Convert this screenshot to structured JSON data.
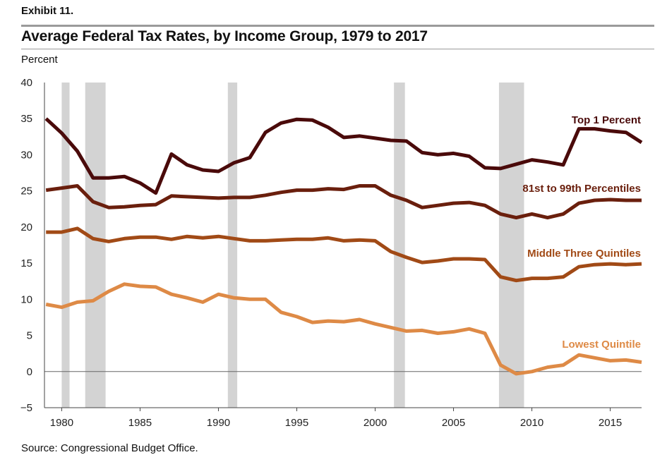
{
  "header": {
    "exhibit": "Exhibit 11.",
    "title": "Average Federal Tax Rates, by Income Group, 1979 to 2017",
    "ylabel": "Percent"
  },
  "footer": {
    "source": "Source: Congressional Budget Office."
  },
  "chart_data": {
    "type": "line",
    "title": "Average Federal Tax Rates, by Income Group, 1979 to 2017",
    "ylabel": "Percent",
    "xlabel": "",
    "xlim": [
      1978.9,
      2017
    ],
    "ylim": [
      -5,
      40
    ],
    "yticks": [
      40,
      35,
      30,
      25,
      20,
      15,
      10,
      5,
      0,
      -5
    ],
    "yticklabels": [
      "40",
      "35",
      "30",
      "25",
      "20",
      "15",
      "10",
      "5",
      "0",
      "−5"
    ],
    "xticks": [
      1980,
      1985,
      1990,
      1995,
      2000,
      2005,
      2010,
      2015
    ],
    "xticklabels": [
      "1980",
      "1985",
      "1990",
      "1995",
      "2000",
      "2005",
      "2010",
      "2015"
    ],
    "zero_line": true,
    "recessions": [
      [
        1980.0,
        1980.5
      ],
      [
        1981.5,
        1982.8
      ],
      [
        1990.6,
        1991.2
      ],
      [
        2001.2,
        2001.9
      ],
      [
        2007.9,
        2009.5
      ]
    ],
    "recession_color": "#d3d3d3",
    "x": [
      1979,
      1980,
      1981,
      1982,
      1983,
      1984,
      1985,
      1986,
      1987,
      1988,
      1989,
      1990,
      1991,
      1992,
      1993,
      1994,
      1995,
      1996,
      1997,
      1998,
      1999,
      2000,
      2001,
      2002,
      2003,
      2004,
      2005,
      2006,
      2007,
      2008,
      2009,
      2010,
      2011,
      2012,
      2013,
      2014,
      2015,
      2016,
      2017
    ],
    "series": [
      {
        "name": "Top 1 Percent",
        "color": "#4a0a0a",
        "values": [
          35.0,
          33.0,
          30.5,
          26.8,
          26.8,
          27.0,
          26.1,
          24.7,
          30.1,
          28.6,
          27.9,
          27.7,
          28.9,
          29.6,
          33.1,
          34.4,
          34.9,
          34.8,
          33.8,
          32.4,
          32.6,
          32.3,
          32.0,
          31.9,
          30.3,
          30.0,
          30.2,
          29.8,
          28.2,
          28.1,
          28.7,
          29.3,
          29.0,
          28.6,
          33.6,
          33.6,
          33.3,
          33.1,
          31.7
        ]
      },
      {
        "name": "81st to 99th Percentiles",
        "color": "#6a1f0d",
        "values": [
          25.1,
          25.4,
          25.7,
          23.5,
          22.7,
          22.8,
          23.0,
          23.1,
          24.3,
          24.2,
          24.1,
          24.0,
          24.1,
          24.1,
          24.4,
          24.8,
          25.1,
          25.1,
          25.3,
          25.2,
          25.7,
          25.7,
          24.4,
          23.7,
          22.7,
          23.0,
          23.3,
          23.4,
          23.0,
          21.8,
          21.3,
          21.8,
          21.3,
          21.8,
          23.3,
          23.7,
          23.8,
          23.7,
          23.7
        ]
      },
      {
        "name": "Middle Three Quintiles",
        "color": "#a14a16",
        "values": [
          19.3,
          19.3,
          19.8,
          18.4,
          18.0,
          18.4,
          18.6,
          18.6,
          18.3,
          18.7,
          18.5,
          18.7,
          18.4,
          18.1,
          18.1,
          18.2,
          18.3,
          18.3,
          18.5,
          18.1,
          18.2,
          18.1,
          16.6,
          15.8,
          15.1,
          15.3,
          15.6,
          15.6,
          15.5,
          13.1,
          12.6,
          12.9,
          12.9,
          13.1,
          14.5,
          14.8,
          14.9,
          14.8,
          14.9
        ]
      },
      {
        "name": "Lowest Quintile",
        "color": "#de8a46",
        "values": [
          9.3,
          8.9,
          9.6,
          9.8,
          11.1,
          12.1,
          11.8,
          11.7,
          10.7,
          10.2,
          9.6,
          10.7,
          10.2,
          10.0,
          10.0,
          8.2,
          7.6,
          6.8,
          7.0,
          6.9,
          7.2,
          6.6,
          6.1,
          5.6,
          5.7,
          5.3,
          5.5,
          5.9,
          5.3,
          0.9,
          -0.3,
          0.0,
          0.6,
          0.9,
          2.3,
          1.9,
          1.5,
          1.6,
          1.3
        ]
      }
    ],
    "grid": false,
    "legend": "inline labels at right"
  }
}
